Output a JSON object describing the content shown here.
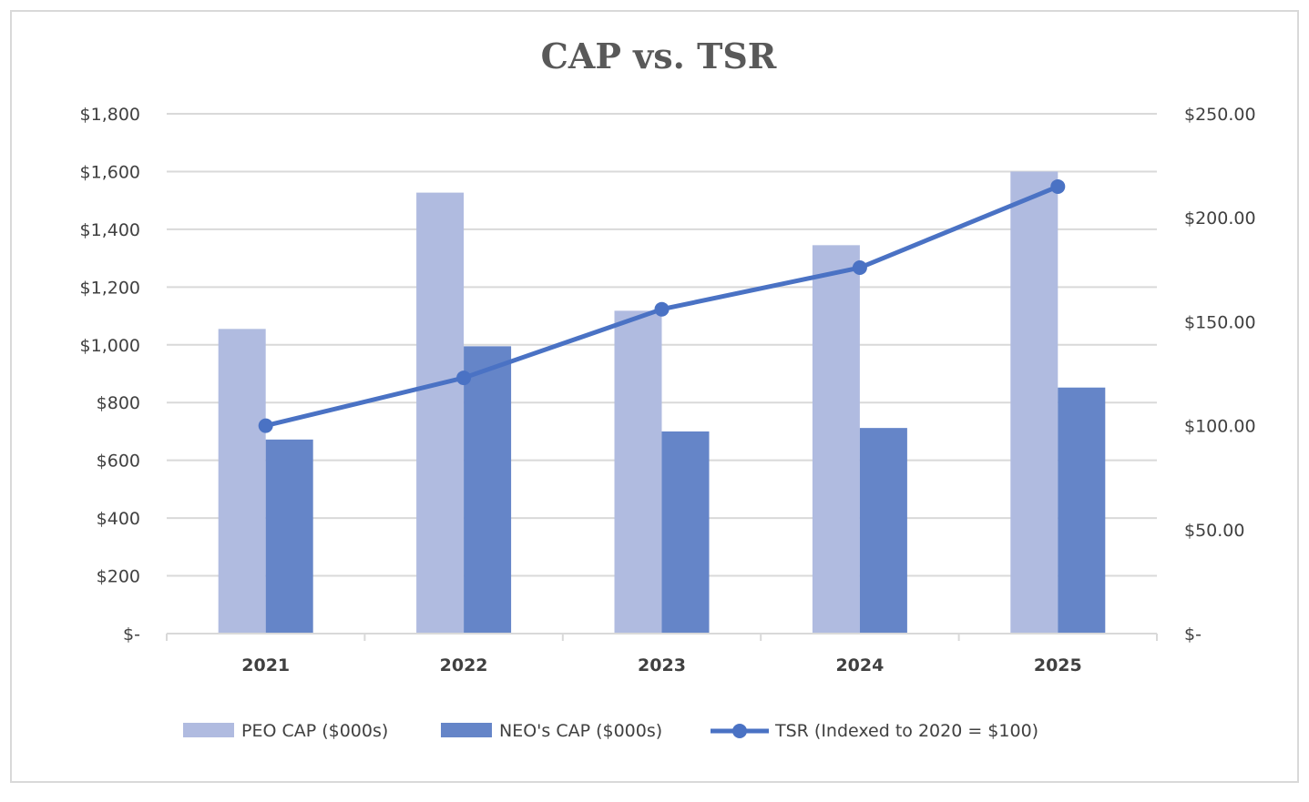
{
  "chart_data": {
    "type": "bar",
    "title": "CAP vs. TSR",
    "categories": [
      "2021",
      "2022",
      "2023",
      "2024",
      "2025"
    ],
    "series": [
      {
        "name": "PEO CAP ($000s)",
        "type": "bar",
        "axis": "left",
        "color": "#b0bbe0",
        "values": [
          1055,
          1527,
          1118,
          1345,
          1600
        ]
      },
      {
        "name": "NEO's CAP ($000s)",
        "type": "bar",
        "axis": "left",
        "color": "#6585c8",
        "values": [
          672,
          995,
          700,
          712,
          852
        ]
      },
      {
        "name": "TSR (Indexed to 2020 = $100)",
        "type": "line",
        "axis": "right",
        "color": "#4a72c4",
        "values": [
          100.0,
          123.0,
          156.0,
          176.0,
          215.0
        ]
      }
    ],
    "left_axis": {
      "min": 0,
      "max": 1800,
      "step": 200,
      "tick_labels": [
        "$-",
        "$200",
        "$400",
        "$600",
        "$800",
        "$1,000",
        "$1,200",
        "$1,400",
        "$1,600",
        "$1,800"
      ]
    },
    "right_axis": {
      "min": 0,
      "max": 250,
      "step": 50,
      "tick_labels": [
        "$-",
        "$50.00",
        "$100.00",
        "$150.00",
        "$200.00",
        "$250.00"
      ]
    },
    "grid": true,
    "legend_position": "bottom",
    "gridline_color": "#d9d9d9",
    "text_color": "#404040",
    "title_color": "#595959"
  }
}
